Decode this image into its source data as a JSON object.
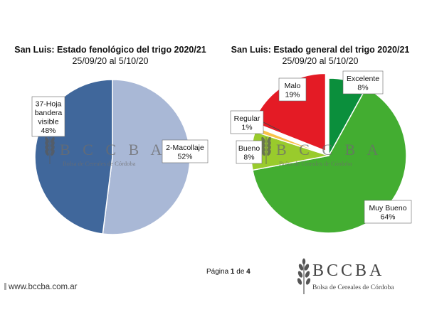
{
  "chart_data": [
    {
      "type": "pie",
      "title": "San Luis: Estado fenológico del trigo 2020/21",
      "subtitle": "25/09/20 al 5/10/20",
      "slices": [
        {
          "label": "2-Macollaje",
          "value": 52,
          "display": "52%",
          "color": "#a9b8d6"
        },
        {
          "label": "37-Hoja bandera visible",
          "label_lines": [
            "37-Hoja",
            "bandera",
            "visible"
          ],
          "value": 48,
          "display": "48%",
          "color": "#40679b"
        }
      ]
    },
    {
      "type": "pie",
      "title": "San Luis: Estado general del trigo 2020/21",
      "subtitle": "25/09/20 al 5/10/20",
      "slices": [
        {
          "label": "Excelente",
          "value": 8,
          "display": "8%",
          "color": "#0b8f3c"
        },
        {
          "label": "Muy Bueno",
          "value": 64,
          "display": "64%",
          "color": "#43ad31"
        },
        {
          "label": "Bueno",
          "value": 8,
          "display": "8%",
          "color": "#99cb2c"
        },
        {
          "label": "Regular",
          "value": 1,
          "display": "1%",
          "color": "#f8c247"
        },
        {
          "label": "Malo",
          "value": 19,
          "display": "19%",
          "color": "#e41b25"
        }
      ]
    }
  ],
  "watermark": {
    "name": "BCCBA",
    "subtitle": "Bolsa de Cereales de Córdoba"
  },
  "footer": {
    "page_prefix": "Página ",
    "page_number": "1",
    "page_mid": " de ",
    "page_total": "4",
    "website": "www.bccba.com.ar",
    "logo_name": "BCCBA",
    "logo_subtitle": "Bolsa de Cereales de Córdoba"
  },
  "icons": {
    "watermark": "wheat-icon",
    "footer_logo": "wheat-icon"
  }
}
